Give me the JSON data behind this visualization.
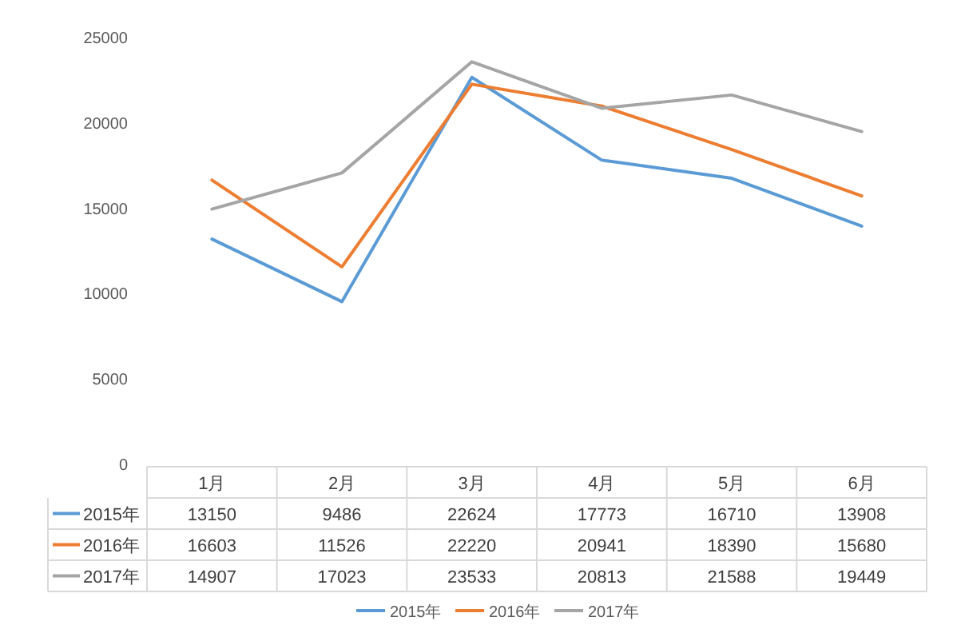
{
  "chart_data": {
    "type": "line",
    "categories": [
      "1月",
      "2月",
      "3月",
      "4月",
      "5月",
      "6月"
    ],
    "series": [
      {
        "name": "2015年",
        "color": "#5b9bd5",
        "values": [
          13150,
          9486,
          22624,
          17773,
          16710,
          13908
        ]
      },
      {
        "name": "2016年",
        "color": "#ed7d31",
        "values": [
          16603,
          11526,
          22220,
          20941,
          18390,
          15680
        ]
      },
      {
        "name": "2017年",
        "color": "#a5a5a5",
        "values": [
          14907,
          17023,
          23533,
          20813,
          21588,
          19449
        ]
      }
    ],
    "ylim": [
      0,
      25000
    ],
    "yticks": [
      0,
      5000,
      10000,
      15000,
      20000,
      25000
    ],
    "grid": false,
    "legend": "bottom",
    "data_labels": true,
    "marker": "none",
    "line_style": "solid"
  }
}
